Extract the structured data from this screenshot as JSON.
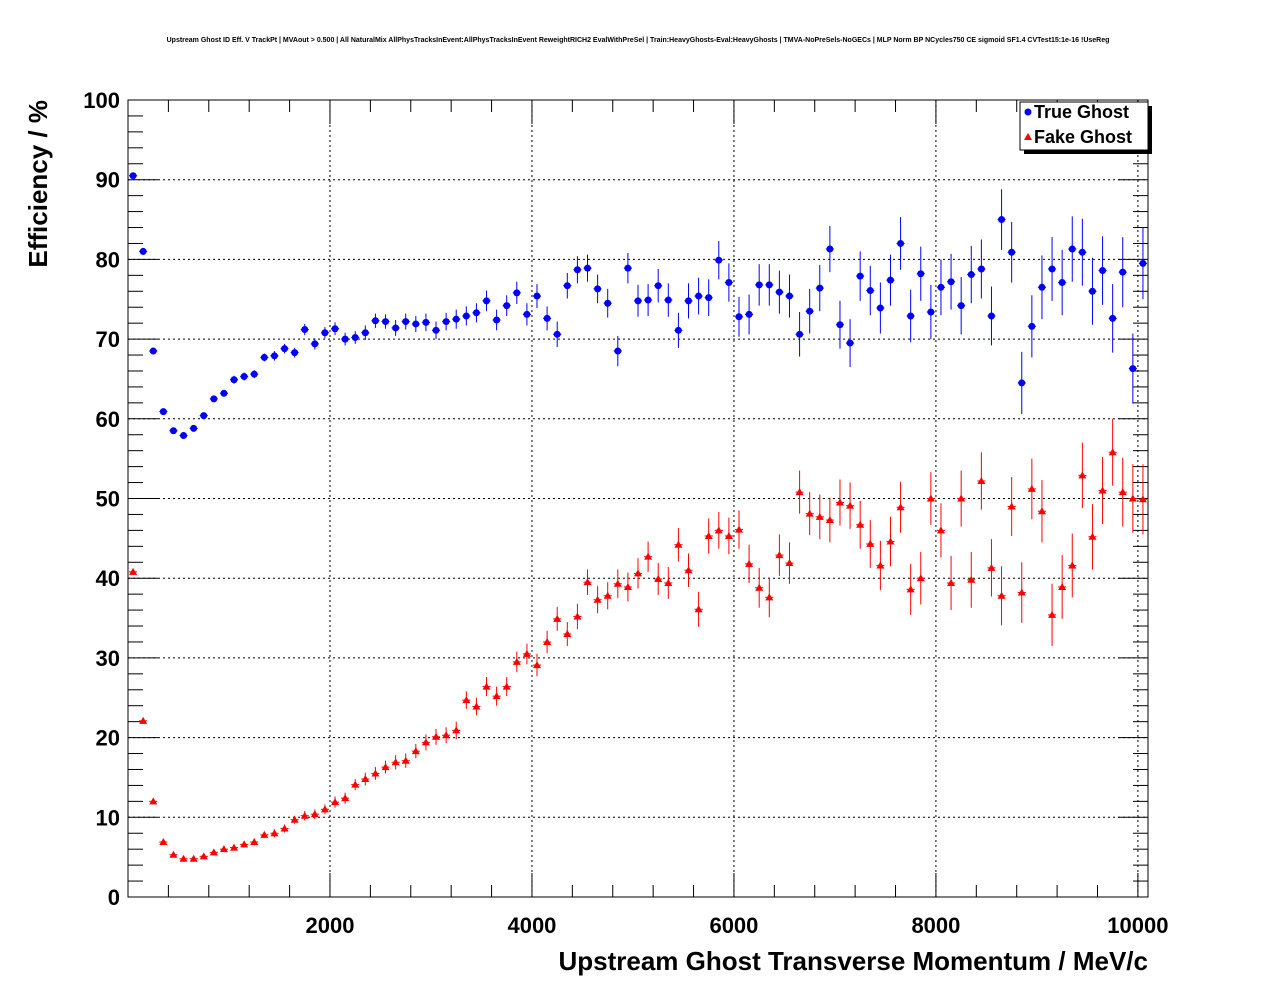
{
  "chart_data": {
    "type": "scatter",
    "title": "Upstream Ghost ID Eff. V TrackPt | MVAout > 0.500 | All NaturalMix AllPhysTracksInEvent:AllPhysTracksInEvent ReweightRICH2 EvalWithPreSel | Train:HeavyGhosts-Eval:HeavyGhosts | TMVA-NoPreSels-NoGECs | MLP Norm BP NCycles750 CE sigmoid SF1.4 CVTest15:1e-16 !UseReg",
    "xlabel": "Upstream Ghost Transverse Momentum / MeV/c",
    "ylabel": "Efficiency / %",
    "xlim": [
      0,
      10100
    ],
    "ylim": [
      0,
      100
    ],
    "x_ticks": [
      2000,
      4000,
      6000,
      8000,
      10000
    ],
    "y_ticks": [
      0,
      10,
      20,
      30,
      40,
      50,
      60,
      70,
      80,
      90,
      100
    ],
    "grid": true,
    "legend": "top-right",
    "x": [
      50,
      150,
      250,
      350,
      450,
      550,
      650,
      750,
      850,
      950,
      1050,
      1150,
      1250,
      1350,
      1450,
      1550,
      1650,
      1750,
      1850,
      1950,
      2050,
      2150,
      2250,
      2350,
      2450,
      2550,
      2650,
      2750,
      2850,
      2950,
      3050,
      3150,
      3250,
      3350,
      3450,
      3550,
      3650,
      3750,
      3850,
      3950,
      4050,
      4150,
      4250,
      4350,
      4450,
      4550,
      4650,
      4750,
      4850,
      4950,
      5050,
      5150,
      5250,
      5350,
      5450,
      5550,
      5650,
      5750,
      5850,
      5950,
      6050,
      6150,
      6250,
      6350,
      6450,
      6550,
      6650,
      6750,
      6850,
      6950,
      7050,
      7150,
      7250,
      7350,
      7450,
      7550,
      7650,
      7750,
      7850,
      7950,
      8050,
      8150,
      8250,
      8350,
      8450,
      8550,
      8650,
      8750,
      8850,
      8950,
      9050,
      9150,
      9250,
      9350,
      9450,
      9550,
      9650,
      9750,
      9850,
      9950,
      10050
    ],
    "series": [
      {
        "name": "True Ghost",
        "color": "#0000ff",
        "marker": "circle",
        "values": [
          90.5,
          81.0,
          68.5,
          60.9,
          58.5,
          57.9,
          58.8,
          60.4,
          62.5,
          63.2,
          64.9,
          65.3,
          65.6,
          67.7,
          67.9,
          68.8,
          68.3,
          71.2,
          69.4,
          70.8,
          71.3,
          70.0,
          70.2,
          70.8,
          72.3,
          72.2,
          71.4,
          72.2,
          71.9,
          72.1,
          71.1,
          72.2,
          72.5,
          72.9,
          73.3,
          74.8,
          72.4,
          74.2,
          75.8,
          73.1,
          75.4,
          72.6,
          70.6,
          76.7,
          78.7,
          78.9,
          76.3,
          74.5,
          68.5,
          78.9,
          74.8,
          74.9,
          76.7,
          74.9,
          71.1,
          74.8,
          75.4,
          75.2,
          79.9,
          77.1,
          72.8,
          73.1,
          76.8,
          76.8,
          75.9,
          75.4,
          70.6,
          73.5,
          76.4,
          81.3,
          71.8,
          69.5,
          77.9,
          76.1,
          73.9,
          77.4,
          82.0,
          72.9,
          78.2,
          73.4,
          76.5,
          77.2,
          74.2,
          78.1,
          78.8,
          72.9,
          85.0,
          80.9,
          64.5,
          71.6,
          76.5,
          78.8,
          77.1,
          81.3,
          80.9,
          76.0,
          78.6,
          72.6,
          78.4,
          66.3,
          79.5
        ],
        "errors": [
          0.4,
          0.4,
          0.4,
          0.4,
          0.4,
          0.4,
          0.4,
          0.4,
          0.4,
          0.4,
          0.5,
          0.5,
          0.5,
          0.5,
          0.6,
          0.6,
          0.6,
          0.7,
          0.7,
          0.7,
          0.8,
          0.8,
          0.8,
          0.9,
          0.9,
          0.9,
          1.0,
          1.0,
          1.0,
          1.1,
          1.1,
          1.1,
          1.2,
          1.2,
          1.2,
          1.3,
          1.3,
          1.3,
          1.4,
          1.4,
          1.5,
          1.5,
          1.6,
          1.6,
          1.7,
          1.7,
          1.8,
          1.8,
          1.9,
          1.9,
          2.0,
          2.0,
          2.1,
          2.1,
          2.2,
          2.2,
          2.3,
          2.3,
          2.4,
          2.4,
          2.5,
          2.5,
          2.6,
          2.6,
          2.7,
          2.7,
          2.8,
          2.8,
          2.9,
          2.9,
          3.0,
          3.0,
          3.1,
          3.1,
          3.2,
          3.2,
          3.3,
          3.3,
          3.4,
          3.4,
          3.5,
          3.5,
          3.6,
          3.6,
          3.7,
          3.7,
          3.8,
          3.8,
          3.9,
          3.9,
          4.0,
          4.0,
          4.1,
          4.1,
          4.2,
          4.2,
          4.3,
          4.3,
          4.4,
          4.4,
          4.5
        ]
      },
      {
        "name": "Fake Ghost",
        "color": "#ff0000",
        "marker": "triangle",
        "values": [
          40.8,
          22.1,
          12.0,
          6.9,
          5.3,
          4.8,
          4.8,
          5.1,
          5.6,
          6.0,
          6.2,
          6.6,
          6.9,
          7.8,
          8.0,
          8.6,
          9.7,
          10.2,
          10.4,
          11.0,
          11.9,
          12.4,
          14.1,
          14.8,
          15.5,
          16.3,
          16.9,
          17.1,
          18.3,
          19.4,
          20.1,
          20.3,
          20.9,
          24.7,
          23.9,
          26.4,
          25.2,
          26.4,
          29.5,
          30.5,
          29.1,
          32.0,
          34.9,
          33.0,
          35.2,
          39.5,
          37.3,
          37.8,
          39.3,
          38.9,
          40.6,
          42.7,
          39.9,
          39.4,
          44.2,
          41.0,
          36.1,
          45.3,
          46.0,
          45.3,
          46.1,
          41.8,
          38.8,
          37.6,
          42.9,
          41.9,
          50.8,
          48.1,
          47.7,
          47.3,
          49.5,
          49.1,
          46.7,
          44.3,
          41.6,
          44.6,
          48.9,
          38.6,
          40.0,
          50.0,
          46.0,
          39.4,
          50.0,
          39.8,
          52.2,
          41.3,
          37.8,
          49.0,
          38.2,
          51.2,
          48.4,
          35.4,
          38.9,
          41.6,
          52.9,
          45.2,
          51.0,
          55.8,
          50.8,
          50.0,
          49.9
        ],
        "errors": [
          0.4,
          0.3,
          0.3,
          0.3,
          0.3,
          0.3,
          0.3,
          0.3,
          0.3,
          0.3,
          0.4,
          0.4,
          0.4,
          0.4,
          0.5,
          0.5,
          0.5,
          0.6,
          0.6,
          0.6,
          0.7,
          0.7,
          0.7,
          0.8,
          0.8,
          0.8,
          0.9,
          0.9,
          0.9,
          1.0,
          1.0,
          1.0,
          1.1,
          1.1,
          1.1,
          1.2,
          1.2,
          1.2,
          1.3,
          1.3,
          1.4,
          1.4,
          1.5,
          1.5,
          1.6,
          1.6,
          1.7,
          1.7,
          1.8,
          1.8,
          1.9,
          1.9,
          2.0,
          2.0,
          2.1,
          2.1,
          2.2,
          2.2,
          2.3,
          2.3,
          2.4,
          2.4,
          2.5,
          2.5,
          2.6,
          2.6,
          2.7,
          2.7,
          2.8,
          2.8,
          2.9,
          2.9,
          3.0,
          3.0,
          3.1,
          3.1,
          3.2,
          3.2,
          3.3,
          3.3,
          3.4,
          3.4,
          3.5,
          3.5,
          3.6,
          3.6,
          3.7,
          3.7,
          3.8,
          3.8,
          3.9,
          3.9,
          4.0,
          4.0,
          4.1,
          4.1,
          4.2,
          4.2,
          4.3,
          4.3,
          4.4
        ]
      }
    ]
  }
}
